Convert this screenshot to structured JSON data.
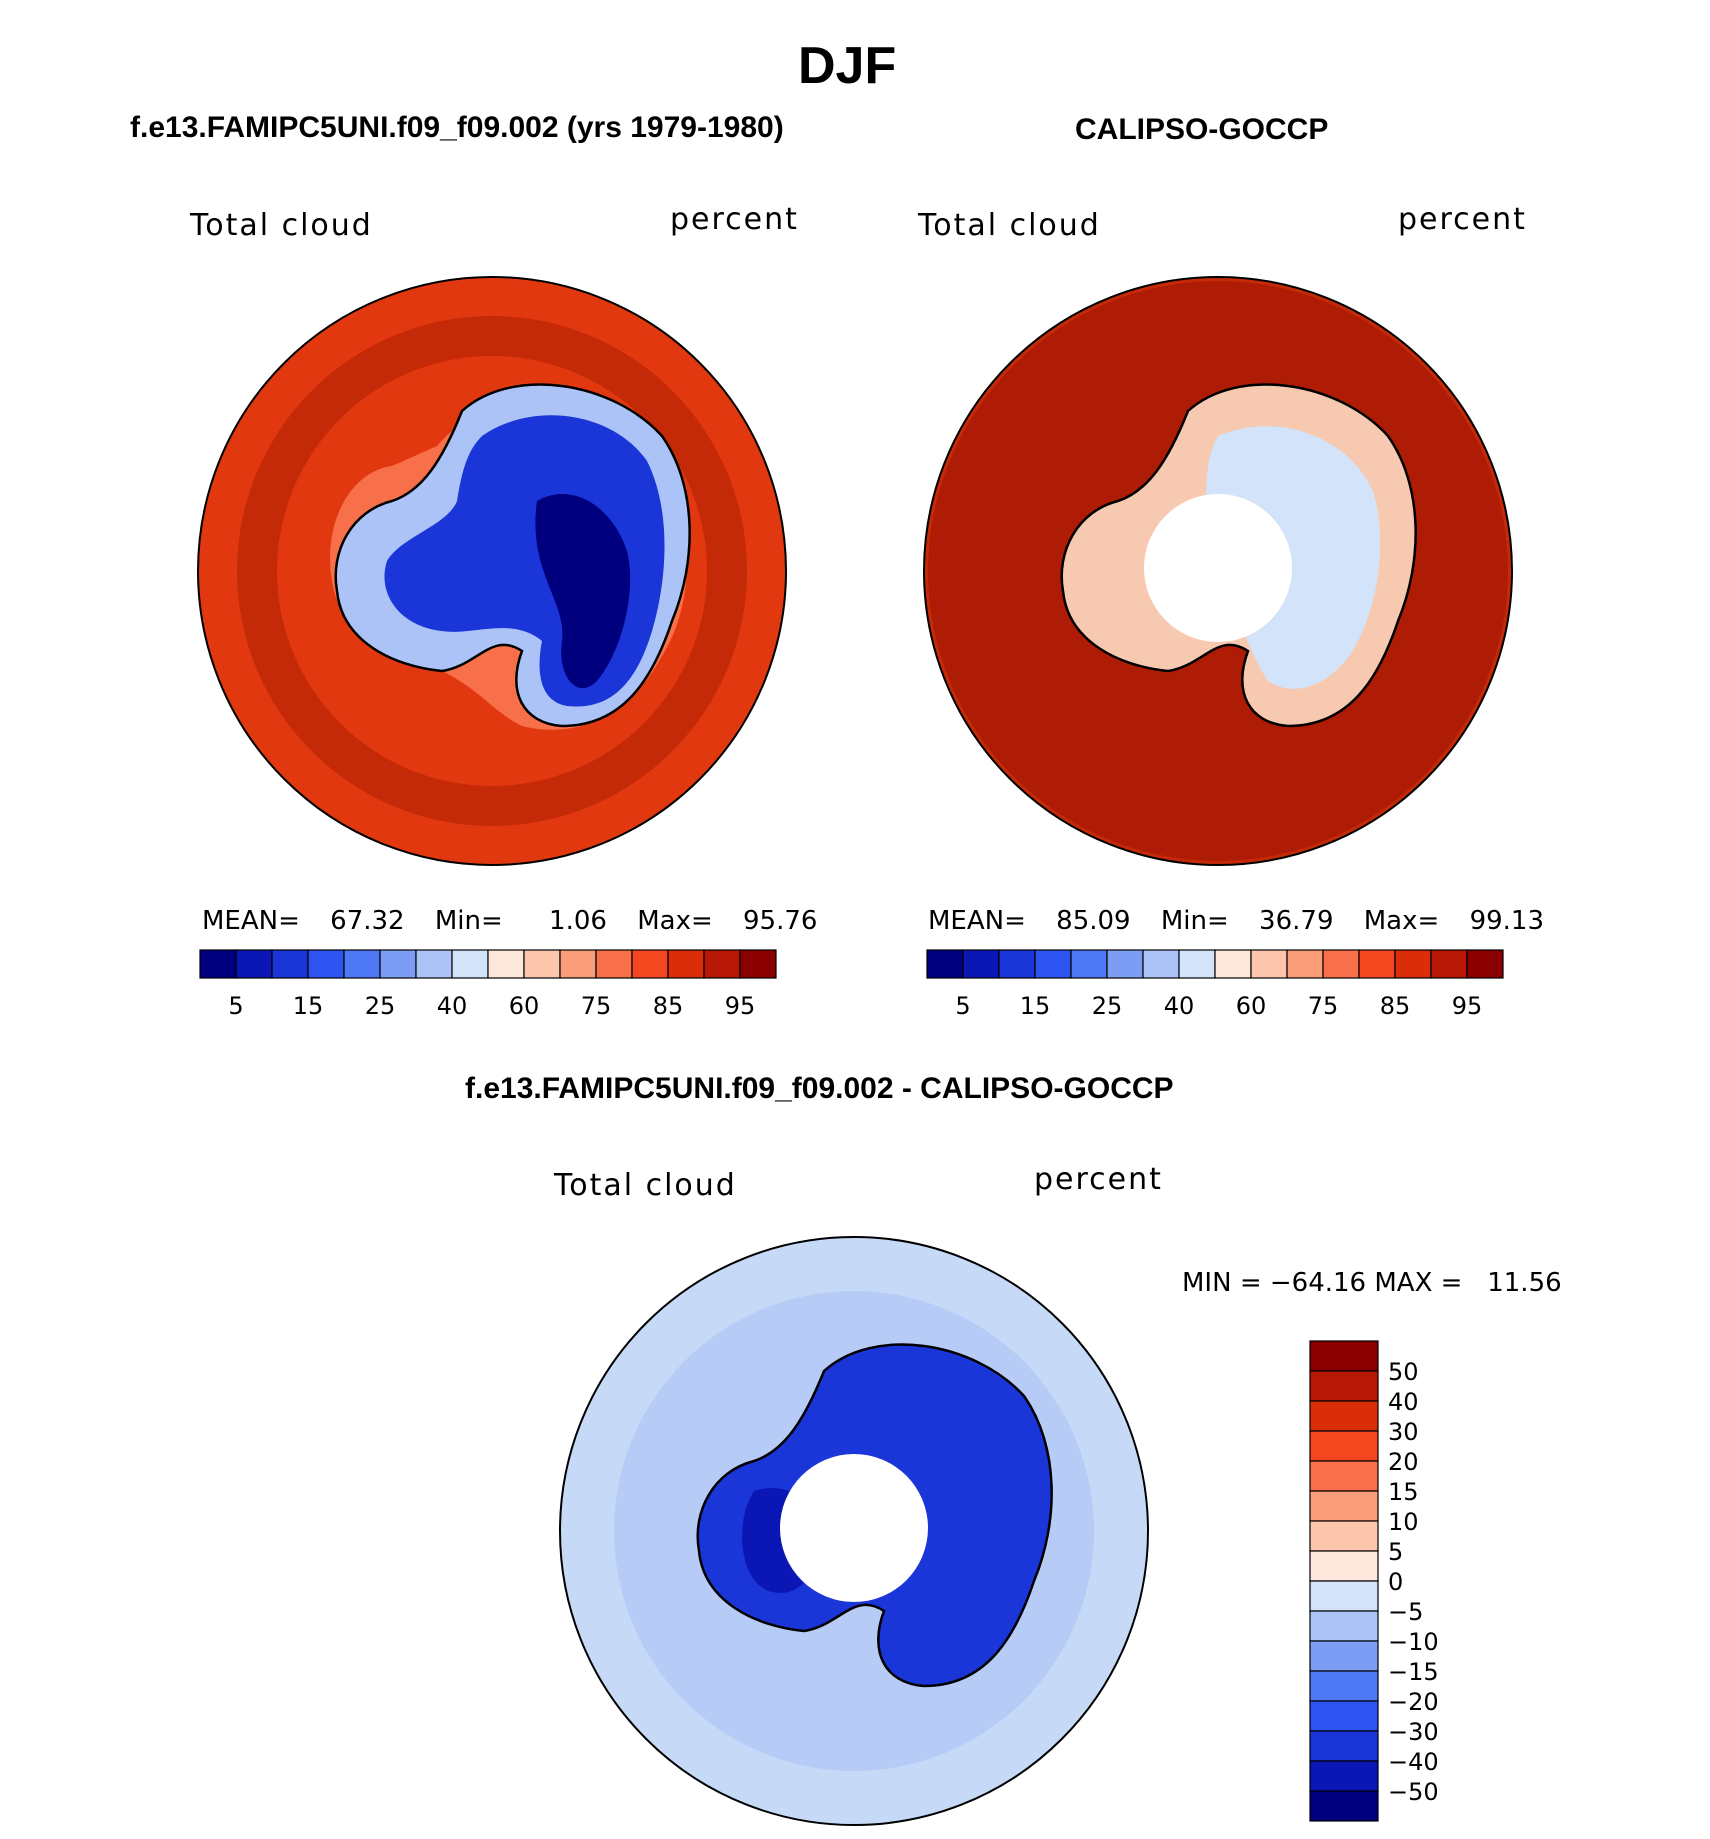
{
  "season_title": "DJF",
  "panels": {
    "model": {
      "case_title": "f.e13.FAMIPC5UNI.f09_f09.002 (yrs 1979-1980)",
      "variable": "Total cloud",
      "units": "percent",
      "stats": {
        "mean_label": "MEAN=",
        "mean": "67.32",
        "min_label": "Min=",
        "min": "1.06",
        "max_label": "Max=",
        "max": "95.76"
      }
    },
    "obs": {
      "case_title": "CALIPSO-GOCCP",
      "variable": "Total cloud",
      "units": "percent",
      "stats": {
        "mean_label": "MEAN=",
        "mean": "85.09",
        "min_label": "Min=",
        "min": "36.79",
        "max_label": "Max=",
        "max": "99.13"
      }
    },
    "diff": {
      "case_title": "f.e13.FAMIPC5UNI.f09_f09.002 - CALIPSO-GOCCP",
      "variable": "Total cloud",
      "units": "percent",
      "minmax_text": "MIN = −64.16 MAX =   11.56"
    }
  },
  "abs_colorbar": {
    "colors": [
      "#00007f",
      "#0b17b4",
      "#1a35d8",
      "#2d53f0",
      "#4f78f5",
      "#7d9df5",
      "#abc3f7",
      "#d3e3fa",
      "#fde6dc",
      "#fbc6ac",
      "#f99d78",
      "#f7704a",
      "#f2471f",
      "#d92e07",
      "#b71805",
      "#8a0000"
    ],
    "tick_labels": [
      "5",
      "15",
      "25",
      "40",
      "60",
      "75",
      "85",
      "95"
    ]
  },
  "diff_colorbar": {
    "colors": [
      "#8a0000",
      "#b71805",
      "#d92e07",
      "#f2471f",
      "#f7704a",
      "#f99d78",
      "#fbc6ac",
      "#fde6dc",
      "#d3e3fa",
      "#abc3f7",
      "#7d9df5",
      "#4f78f5",
      "#2d53f0",
      "#1a35d8",
      "#0b17b4",
      "#00007f"
    ],
    "tick_labels": [
      "50",
      "40",
      "30",
      "20",
      "15",
      "10",
      "5",
      "0",
      "−5",
      "−10",
      "−15",
      "−20",
      "−30",
      "−40",
      "−50"
    ]
  },
  "map_colors": {
    "ocean_model": "#e2380f",
    "ocean_model_dark": "#c42a08",
    "ocean_model_light": "#f7704a",
    "ice_model": "#1a35d8",
    "ice_model_deep": "#00007f",
    "ice_model_edge": "#abc3f7",
    "ocean_obs": "#c42a08",
    "ocean_obs_dark": "#9a0d02",
    "land_obs": "#f7c9b0",
    "land_obs_light": "#d3e3fa",
    "ocean_diff": "#c6daf8",
    "ocean_diff_mid": "#abc3f7",
    "land_diff": "#1a35d8",
    "land_diff_dark": "#0b17b4",
    "coast": "#000000",
    "missing": "#ffffff"
  }
}
